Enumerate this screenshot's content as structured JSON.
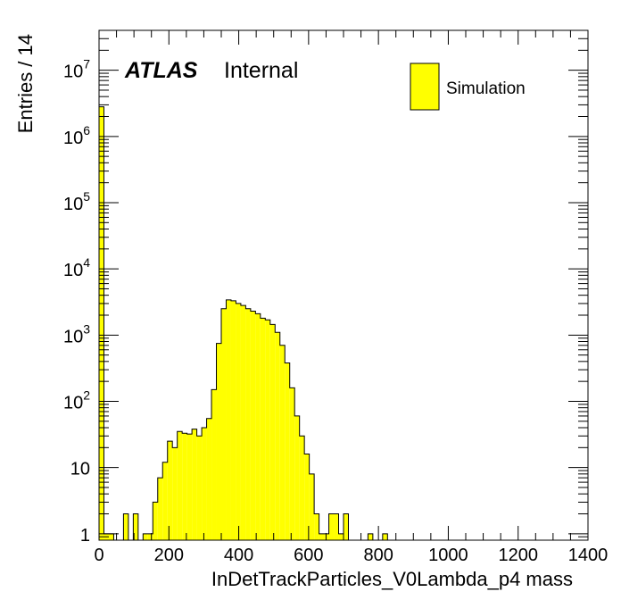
{
  "chart_data": {
    "type": "bar",
    "title": "",
    "xlabel": "InDetTrackParticles_V0Lambda_p4 mass",
    "ylabel": "Entries / 14",
    "xlim": [
      0,
      1400
    ],
    "ylim": [
      0.8,
      40000000
    ],
    "y_scale": "log",
    "bin_width": 14,
    "grid": false,
    "legend_position": "top-right",
    "fill_color": "#ffff00",
    "line_color": "#000000",
    "x_ticks": [
      "0",
      "200",
      "400",
      "600",
      "800",
      "1000",
      "1200",
      "1400"
    ],
    "y_ticks": [
      {
        "base": "1",
        "exp": ""
      },
      {
        "base": "10",
        "exp": ""
      },
      {
        "base": "10",
        "exp": "2"
      },
      {
        "base": "10",
        "exp": "3"
      },
      {
        "base": "10",
        "exp": "4"
      },
      {
        "base": "10",
        "exp": "5"
      },
      {
        "base": "10",
        "exp": "6"
      },
      {
        "base": "10",
        "exp": "7"
      }
    ],
    "series": [
      {
        "name": "Simulation",
        "bins": [
          [
            0,
            2800000
          ],
          [
            14,
            1
          ],
          [
            28,
            1
          ],
          [
            70,
            2
          ],
          [
            98,
            2
          ],
          [
            126,
            1
          ],
          [
            140,
            1
          ],
          [
            154,
            3
          ],
          [
            168,
            7
          ],
          [
            182,
            12
          ],
          [
            196,
            25
          ],
          [
            210,
            20
          ],
          [
            224,
            35
          ],
          [
            238,
            33
          ],
          [
            252,
            32
          ],
          [
            266,
            38
          ],
          [
            280,
            30
          ],
          [
            294,
            40
          ],
          [
            308,
            55
          ],
          [
            322,
            150
          ],
          [
            336,
            750
          ],
          [
            350,
            2500
          ],
          [
            364,
            3400
          ],
          [
            378,
            3300
          ],
          [
            392,
            3000
          ],
          [
            406,
            2800
          ],
          [
            420,
            2500
          ],
          [
            434,
            2300
          ],
          [
            448,
            2100
          ],
          [
            462,
            1800
          ],
          [
            476,
            1700
          ],
          [
            490,
            1450
          ],
          [
            504,
            1100
          ],
          [
            518,
            700
          ],
          [
            532,
            380
          ],
          [
            546,
            160
          ],
          [
            560,
            60
          ],
          [
            574,
            30
          ],
          [
            588,
            16
          ],
          [
            602,
            8
          ],
          [
            616,
            2
          ],
          [
            630,
            1
          ],
          [
            644,
            1
          ],
          [
            658,
            2
          ],
          [
            672,
            2
          ],
          [
            686,
            1
          ],
          [
            700,
            2
          ],
          [
            770,
            1
          ],
          [
            812,
            1
          ]
        ]
      }
    ],
    "annotations": {
      "experiment": "ATLAS",
      "status": "Internal"
    }
  }
}
